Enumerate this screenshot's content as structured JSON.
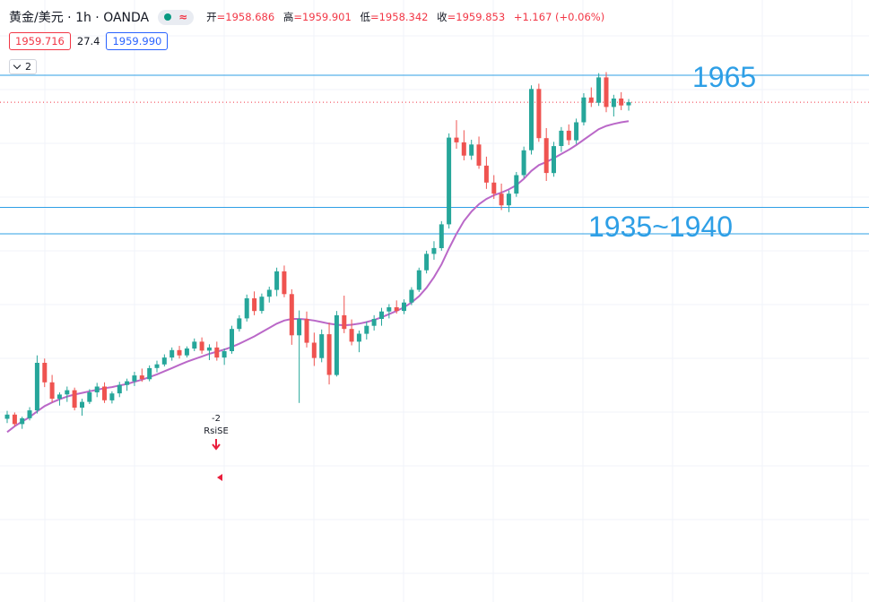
{
  "header": {
    "symbol": "黄金/美元 · 1h · OANDA",
    "status_dot_color": "#089981",
    "wave_glyph": "≈",
    "ohlc": [
      {
        "key": "开",
        "value": "=1958.686"
      },
      {
        "key": "高",
        "value": "=1959.901"
      },
      {
        "key": "低",
        "value": "=1958.342"
      },
      {
        "key": "收",
        "value": "=1959.853"
      }
    ],
    "change": "+1.167 (+0.06%)",
    "change_color": "#f23645"
  },
  "quote": {
    "sell": "1959.716",
    "spread": "27.4",
    "buy": "1959.990",
    "sell_color": "#f23645",
    "buy_color": "#2962ff"
  },
  "collapse": {
    "count": "2"
  },
  "annotations": {
    "level_1965": "1965",
    "level_range": "1935~1940",
    "signal_value": "-2",
    "signal_name": "RsiSE"
  },
  "chart_data": {
    "type": "candlestick",
    "up_color": "#26a69a",
    "down_color": "#ef5350",
    "ma_color": "#ba68c8",
    "line_color": "#2e9fe6",
    "candles": [
      [
        1900.0,
        1901.5,
        1899.2,
        1900.8
      ],
      [
        1900.8,
        1901.2,
        1898.6,
        1899.0
      ],
      [
        1899.0,
        1900.4,
        1898.1,
        1900.1
      ],
      [
        1900.1,
        1902.2,
        1899.7,
        1901.6
      ],
      [
        1901.6,
        1912.0,
        1901.0,
        1910.6
      ],
      [
        1910.6,
        1911.4,
        1906.0,
        1906.9
      ],
      [
        1906.9,
        1908.3,
        1903.1,
        1903.8
      ],
      [
        1903.8,
        1905.0,
        1902.5,
        1904.6
      ],
      [
        1904.6,
        1906.1,
        1903.2,
        1905.4
      ],
      [
        1905.4,
        1905.9,
        1901.6,
        1902.1
      ],
      [
        1902.1,
        1903.8,
        1900.6,
        1903.2
      ],
      [
        1903.2,
        1905.6,
        1902.8,
        1905.0
      ],
      [
        1905.0,
        1906.8,
        1904.1,
        1906.1
      ],
      [
        1906.1,
        1906.9,
        1903.0,
        1903.5
      ],
      [
        1903.5,
        1905.2,
        1902.9,
        1904.8
      ],
      [
        1904.8,
        1907.0,
        1904.1,
        1906.4
      ],
      [
        1906.4,
        1907.6,
        1905.3,
        1907.1
      ],
      [
        1907.1,
        1908.9,
        1906.2,
        1908.2
      ],
      [
        1908.2,
        1909.5,
        1907.0,
        1907.5
      ],
      [
        1907.5,
        1910.1,
        1907.1,
        1909.6
      ],
      [
        1909.6,
        1911.0,
        1908.8,
        1910.3
      ],
      [
        1910.3,
        1912.2,
        1909.9,
        1911.6
      ],
      [
        1911.6,
        1913.5,
        1911.0,
        1913.0
      ],
      [
        1913.0,
        1913.8,
        1911.4,
        1912.0
      ],
      [
        1912.0,
        1913.7,
        1911.6,
        1913.3
      ],
      [
        1913.3,
        1915.2,
        1912.8,
        1914.6
      ],
      [
        1914.6,
        1915.4,
        1912.3,
        1912.9
      ],
      [
        1912.9,
        1914.1,
        1911.1,
        1913.5
      ],
      [
        1913.5,
        1914.6,
        1911.0,
        1911.6
      ],
      [
        1911.6,
        1913.3,
        1910.2,
        1912.8
      ],
      [
        1912.8,
        1917.6,
        1912.3,
        1917.0
      ],
      [
        1917.0,
        1919.6,
        1916.5,
        1919.0
      ],
      [
        1919.0,
        1923.5,
        1918.4,
        1922.8
      ],
      [
        1922.8,
        1924.1,
        1919.6,
        1920.4
      ],
      [
        1920.4,
        1923.7,
        1919.9,
        1923.1
      ],
      [
        1923.1,
        1925.0,
        1922.0,
        1924.4
      ],
      [
        1924.4,
        1928.6,
        1923.2,
        1927.9
      ],
      [
        1927.9,
        1929.0,
        1923.0,
        1923.6
      ],
      [
        1923.6,
        1924.5,
        1914.0,
        1915.8
      ],
      [
        1915.8,
        1920.5,
        1903.0,
        1918.9
      ],
      [
        1918.9,
        1920.3,
        1913.5,
        1914.4
      ],
      [
        1914.4,
        1916.3,
        1910.0,
        1911.5
      ],
      [
        1911.5,
        1916.9,
        1910.7,
        1916.0
      ],
      [
        1916.0,
        1918.2,
        1906.5,
        1908.3
      ],
      [
        1908.3,
        1920.4,
        1908.0,
        1919.6
      ],
      [
        1919.6,
        1923.3,
        1916.2,
        1917.0
      ],
      [
        1917.0,
        1918.8,
        1913.9,
        1914.6
      ],
      [
        1914.6,
        1916.7,
        1912.6,
        1916.1
      ],
      [
        1916.1,
        1918.4,
        1915.0,
        1917.6
      ],
      [
        1917.6,
        1919.6,
        1916.7,
        1918.9
      ],
      [
        1918.9,
        1921.0,
        1917.6,
        1920.3
      ],
      [
        1920.3,
        1921.7,
        1919.0,
        1921.1
      ],
      [
        1921.1,
        1922.4,
        1919.9,
        1920.4
      ],
      [
        1920.4,
        1922.6,
        1919.8,
        1922.0
      ],
      [
        1922.0,
        1924.9,
        1921.5,
        1924.4
      ],
      [
        1924.4,
        1928.6,
        1924.0,
        1928.1
      ],
      [
        1928.1,
        1931.8,
        1927.5,
        1931.2
      ],
      [
        1931.2,
        1933.6,
        1930.1,
        1932.3
      ],
      [
        1932.3,
        1937.4,
        1931.8,
        1936.8
      ],
      [
        1936.8,
        1954.0,
        1936.0,
        1953.2
      ],
      [
        1953.2,
        1956.5,
        1951.1,
        1952.3
      ],
      [
        1952.3,
        1954.6,
        1948.9,
        1949.8
      ],
      [
        1949.8,
        1952.8,
        1949.0,
        1951.9
      ],
      [
        1951.9,
        1953.4,
        1947.3,
        1947.9
      ],
      [
        1947.9,
        1949.6,
        1943.5,
        1944.7
      ],
      [
        1944.7,
        1946.1,
        1941.6,
        1942.6
      ],
      [
        1942.6,
        1944.5,
        1939.5,
        1940.4
      ],
      [
        1940.4,
        1943.2,
        1939.1,
        1942.6
      ],
      [
        1942.6,
        1946.7,
        1942.0,
        1946.1
      ],
      [
        1946.1,
        1951.5,
        1945.6,
        1950.8
      ],
      [
        1950.8,
        1963.1,
        1950.0,
        1962.4
      ],
      [
        1962.4,
        1963.4,
        1952.4,
        1953.1
      ],
      [
        1953.1,
        1955.0,
        1945.0,
        1946.5
      ],
      [
        1946.5,
        1952.4,
        1945.8,
        1951.6
      ],
      [
        1951.6,
        1955.2,
        1950.5,
        1954.5
      ],
      [
        1954.5,
        1955.7,
        1951.8,
        1952.7
      ],
      [
        1952.7,
        1956.8,
        1952.0,
        1956.1
      ],
      [
        1956.1,
        1961.6,
        1955.5,
        1960.8
      ],
      [
        1960.8,
        1962.7,
        1959.0,
        1959.8
      ],
      [
        1959.8,
        1965.4,
        1959.2,
        1964.6
      ],
      [
        1964.6,
        1965.6,
        1958.0,
        1959.0
      ],
      [
        1959.0,
        1961.3,
        1957.2,
        1960.6
      ],
      [
        1960.6,
        1961.8,
        1958.4,
        1959.3
      ],
      [
        1959.3,
        1960.5,
        1958.3,
        1959.9
      ]
    ],
    "ma": [
      1897.5,
      1898.6,
      1899.5,
      1900.3,
      1901.4,
      1902.4,
      1903.1,
      1903.7,
      1904.2,
      1904.6,
      1904.9,
      1905.2,
      1905.5,
      1905.8,
      1906.0,
      1906.3,
      1906.6,
      1907.0,
      1907.4,
      1907.9,
      1908.4,
      1909.0,
      1909.6,
      1910.2,
      1910.8,
      1911.3,
      1911.8,
      1912.3,
      1912.7,
      1913.1,
      1913.6,
      1914.2,
      1914.9,
      1915.6,
      1916.4,
      1917.2,
      1918.0,
      1918.6,
      1918.9,
      1918.9,
      1918.8,
      1918.6,
      1918.3,
      1918.0,
      1917.8,
      1917.7,
      1917.8,
      1918.0,
      1918.3,
      1918.7,
      1919.2,
      1919.8,
      1920.4,
      1921.1,
      1922.0,
      1923.2,
      1924.8,
      1926.8,
      1929.2,
      1932.2,
      1935.0,
      1937.4,
      1939.2,
      1940.6,
      1941.6,
      1942.3,
      1942.8,
      1943.4,
      1944.2,
      1945.4,
      1946.9,
      1948.0,
      1948.6,
      1949.3,
      1950.1,
      1950.9,
      1951.8,
      1952.8,
      1953.8,
      1954.8,
      1955.4,
      1955.8,
      1956.1,
      1956.3
    ]
  }
}
